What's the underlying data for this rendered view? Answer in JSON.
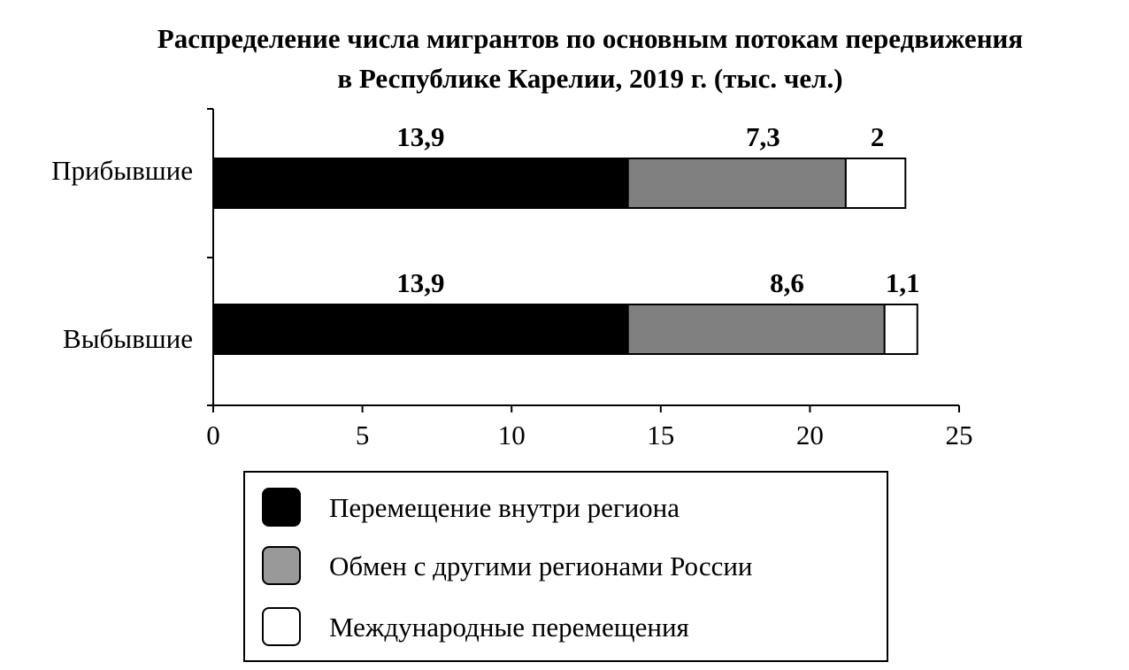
{
  "chart_data": {
    "type": "bar",
    "orientation": "horizontal",
    "stacked": true,
    "title": "Распределение числа мигрантов по основным потокам передвижения",
    "subtitle": "в Республике Карелии, 2019 г. (тыс. чел.)",
    "xlabel": "",
    "ylabel": "",
    "categories": [
      "Прибывшие",
      "Выбывшие"
    ],
    "series": [
      {
        "name": "Перемещение внутри региона",
        "color": "#000000",
        "values": [
          13.9,
          13.9
        ],
        "labels": [
          "13,9",
          "13,9"
        ]
      },
      {
        "name": "Обмен с другими регионами России",
        "color": "#808080",
        "values": [
          7.3,
          8.6
        ],
        "labels": [
          "7,3",
          "8,6"
        ]
      },
      {
        "name": "Международные перемещения",
        "color": "#ffffff",
        "values": [
          2,
          1.1
        ],
        "labels": [
          "2",
          "1,1"
        ]
      }
    ],
    "xlim": [
      0,
      25
    ],
    "xticks": [
      0,
      5,
      10,
      15,
      20,
      25
    ],
    "xtick_labels": [
      "0",
      "5",
      "10",
      "15",
      "20",
      "25"
    ],
    "grid": false,
    "legend_placement": "bottom"
  }
}
